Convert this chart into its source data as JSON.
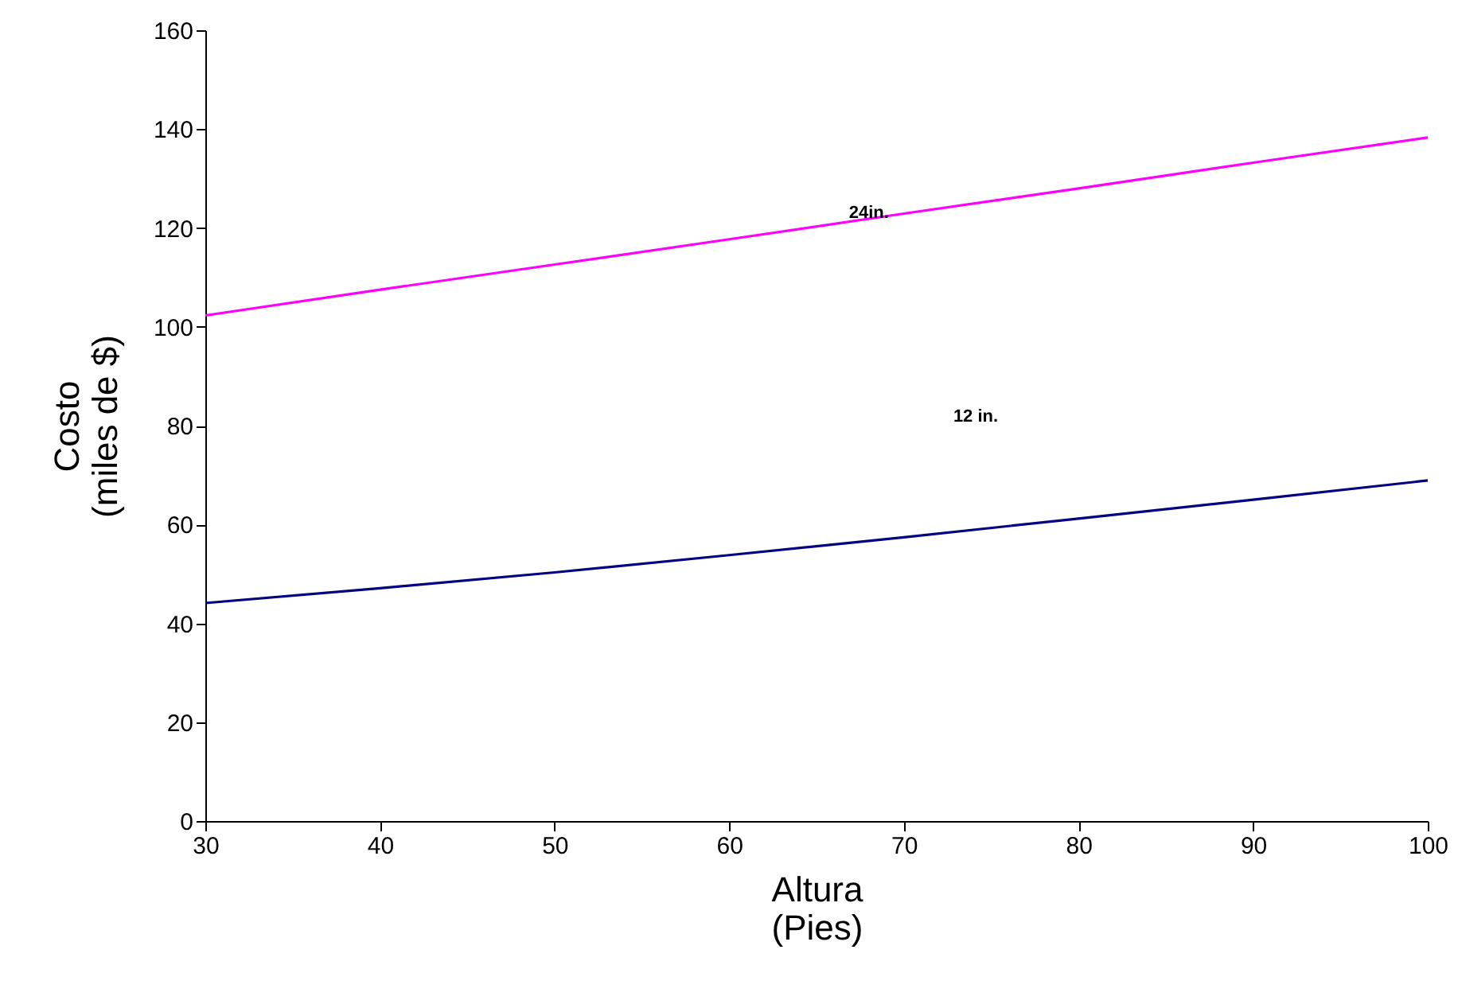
{
  "chart_data": {
    "type": "line",
    "xlabel": "Altura\n(Pies)",
    "ylabel": "Costo\n(miles de $)",
    "x": [
      30,
      40,
      50,
      60,
      70,
      80,
      90,
      100
    ],
    "series": [
      {
        "color": "#ff00ff",
        "values": [
          102.3,
          107.5,
          112.6,
          117.7,
          122.9,
          128,
          133.2,
          138.3
        ]
      },
      {
        "color": "#000080",
        "values": [
          44.1,
          47.1,
          50.3,
          53.8,
          57.4,
          61.2,
          65,
          68.9
        ]
      }
    ],
    "annotations": [
      {
        "text": "24in.",
        "x": 68,
        "y": 123
      },
      "12 in."
    ],
    "xlim": [
      30,
      100
    ],
    "xticks": [
      30,
      40,
      50,
      60,
      70,
      80,
      90,
      100
    ],
    "ylim": [
      0,
      160
    ],
    "yticks": [
      0,
      20,
      40,
      60,
      80,
      100,
      120,
      140,
      160
    ],
    "marker": "none",
    "line_style": "solid"
  }
}
